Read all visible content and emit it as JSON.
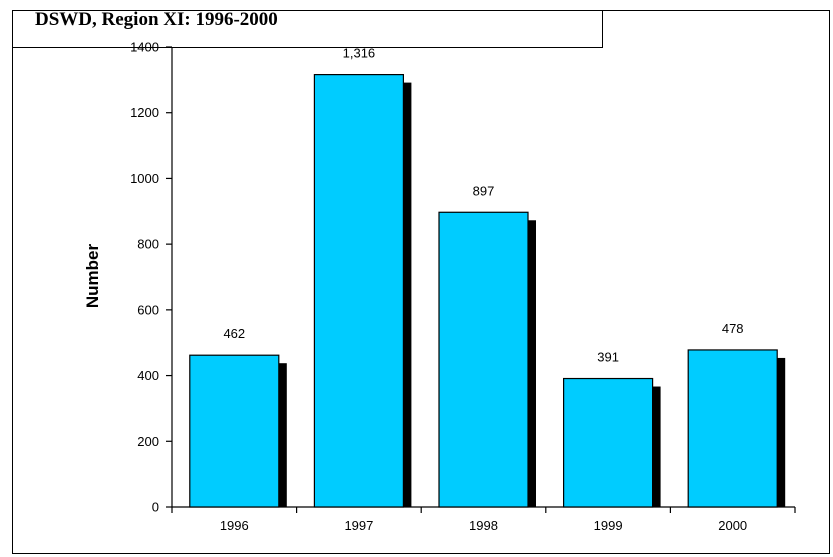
{
  "title": "DSWD, Region XI: 1996-2000",
  "chart_data": {
    "type": "bar",
    "title": "DSWD, Region XI: 1996-2000",
    "xlabel": "",
    "ylabel": "Number",
    "categories": [
      "1996",
      "1997",
      "1998",
      "1999",
      "2000"
    ],
    "values": [
      462,
      1316,
      897,
      391,
      478
    ],
    "data_labels": [
      "462",
      "1,316",
      "897",
      "391",
      "478"
    ],
    "ylim": [
      0,
      1400
    ],
    "yticks": [
      "0",
      "200",
      "400",
      "600",
      "800",
      "1000",
      "1200",
      "1400"
    ],
    "grid": false,
    "legend": "none",
    "bar_color": "#00ccff",
    "shadow_color": "#000000"
  }
}
